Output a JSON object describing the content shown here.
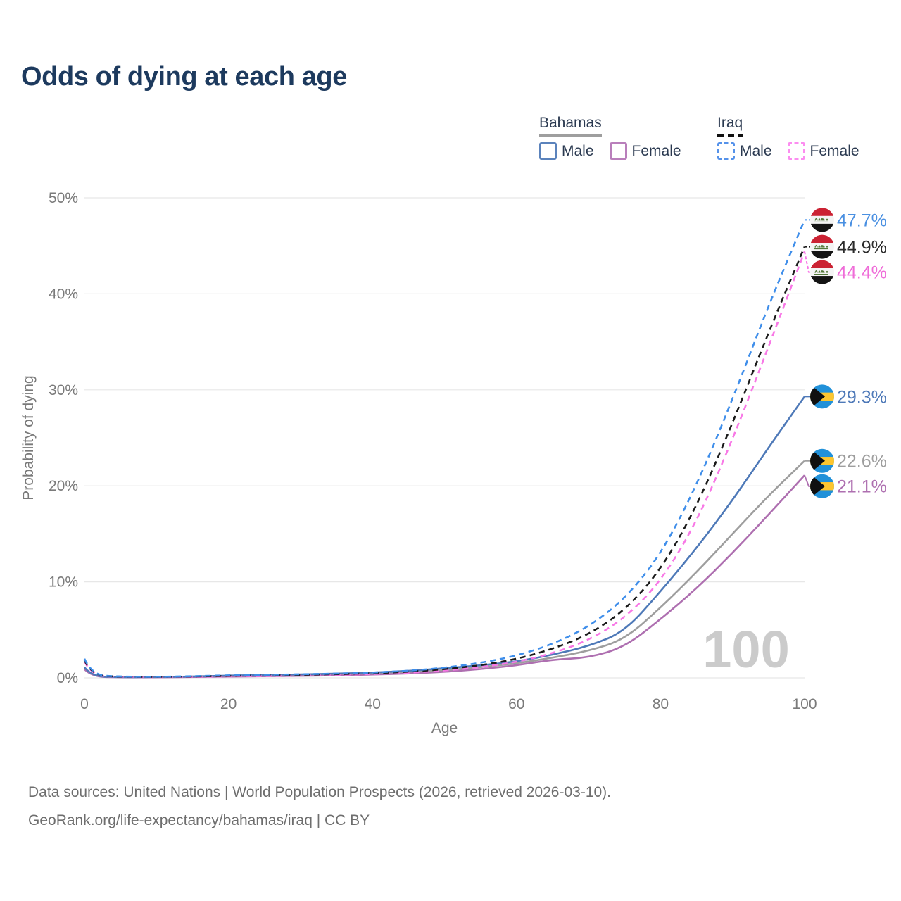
{
  "title": "Odds of dying at each age",
  "legend": {
    "groups": [
      {
        "label": "Bahamas",
        "style": "solid",
        "underline_color": "#9e9e9e",
        "items": [
          {
            "label": "Male",
            "color": "#5b83bc",
            "dash": "solid"
          },
          {
            "label": "Female",
            "color": "#b97fbb",
            "dash": "solid"
          }
        ]
      },
      {
        "label": "Iraq",
        "style": "dashed",
        "underline_color": "#111111",
        "items": [
          {
            "label": "Male",
            "color": "#5592ea",
            "dash": "dashed"
          },
          {
            "label": "Female",
            "color": "#fc8df0",
            "dash": "dashed"
          }
        ]
      }
    ]
  },
  "chart_data": {
    "type": "line",
    "title": "Odds of dying at each age",
    "xlabel": "Age",
    "ylabel": "Probability of dying",
    "xlim": [
      0,
      100
    ],
    "ylim": [
      0,
      50
    ],
    "grid": "horizontal",
    "legend_position": "top-right",
    "xticks": [
      0,
      20,
      40,
      60,
      80,
      100
    ],
    "ytick_values": [
      0,
      10,
      20,
      30,
      40,
      50
    ],
    "yticks": [
      "0%",
      "10%",
      "20%",
      "30%",
      "40%",
      "50%"
    ],
    "watermark": "100",
    "ages": [
      0,
      1,
      5,
      10,
      15,
      20,
      25,
      30,
      35,
      40,
      45,
      50,
      55,
      60,
      65,
      70,
      75,
      80,
      85,
      90,
      95,
      100
    ],
    "values_unit": "percent (approximate, read from chart)",
    "series": [
      {
        "id": "bahamas-male",
        "country": "Bahamas",
        "sex": "Male",
        "flag": "bahamas",
        "dash": "solid",
        "color": "#4e79b8",
        "label_color": "#4e79b8",
        "end_label": "29.3%",
        "z": 2,
        "values": [
          1.1,
          0.15,
          0.08,
          0.08,
          0.14,
          0.24,
          0.3,
          0.36,
          0.44,
          0.55,
          0.72,
          1.0,
          1.3,
          1.7,
          2.4,
          3.3,
          4.8,
          9.0,
          13.5,
          18.5,
          24.0,
          29.3
        ]
      },
      {
        "id": "bahamas-female",
        "country": "Bahamas",
        "sex": "Female",
        "flag": "bahamas",
        "dash": "solid",
        "color": "#ae6fb0",
        "label_color": "#ae6fb0",
        "end_label": "21.1%",
        "z": 1,
        "values": [
          0.9,
          0.12,
          0.06,
          0.06,
          0.09,
          0.13,
          0.17,
          0.21,
          0.26,
          0.34,
          0.45,
          0.62,
          0.9,
          1.3,
          1.9,
          2.1,
          3.2,
          6.1,
          9.3,
          13.0,
          17.0,
          21.1
        ]
      },
      {
        "id": "bahamas-both",
        "country": "Bahamas",
        "sex": "Both sexes",
        "flag": "bahamas",
        "dash": "solid",
        "color": "#9e9e9e",
        "label_color": "#9e9e9e",
        "end_label": "22.6%",
        "z": 0,
        "values": [
          1.0,
          0.13,
          0.07,
          0.07,
          0.11,
          0.18,
          0.23,
          0.28,
          0.35,
          0.44,
          0.57,
          0.8,
          1.1,
          1.5,
          2.1,
          2.8,
          4.0,
          7.3,
          11.0,
          15.0,
          19.0,
          22.6
        ]
      },
      {
        "id": "iraq-male",
        "country": "Iraq",
        "sex": "Male",
        "flag": "iraq",
        "dash": "dashed",
        "color": "#3f8eea",
        "label_color": "#4a90e2",
        "end_label": "47.7%",
        "z": 5,
        "values": [
          2.0,
          0.3,
          0.13,
          0.11,
          0.17,
          0.27,
          0.32,
          0.37,
          0.44,
          0.55,
          0.73,
          1.05,
          1.55,
          2.3,
          3.5,
          5.3,
          8.2,
          12.8,
          20.0,
          29.0,
          38.8,
          47.7
        ]
      },
      {
        "id": "iraq-female",
        "country": "Iraq",
        "sex": "Female",
        "flag": "iraq",
        "dash": "dashed",
        "color": "#f878e6",
        "label_color": "#ef6cd8",
        "end_label": "44.4%",
        "z": 3,
        "values": [
          1.7,
          0.24,
          0.1,
          0.08,
          0.11,
          0.15,
          0.19,
          0.24,
          0.31,
          0.4,
          0.53,
          0.76,
          1.1,
          1.65,
          2.55,
          3.9,
          6.2,
          10.0,
          16.2,
          24.8,
          34.5,
          44.4
        ]
      },
      {
        "id": "iraq-both",
        "country": "Iraq",
        "sex": "Both sexes",
        "flag": "iraq",
        "dash": "dashed",
        "color": "#1a1a1a",
        "label_color": "#2b2b2b",
        "end_label": "44.9%",
        "z": 4,
        "values": [
          1.85,
          0.27,
          0.11,
          0.1,
          0.14,
          0.21,
          0.26,
          0.31,
          0.38,
          0.48,
          0.63,
          0.9,
          1.3,
          1.95,
          3.0,
          4.5,
          7.0,
          11.2,
          17.8,
          26.5,
          36.0,
          44.9
        ]
      }
    ],
    "flag_colors": {
      "iraq": {
        "red": "#cb2233",
        "white": "#f4f4f4",
        "black": "#141414",
        "green": "#55793c"
      },
      "bahamas": {
        "aqua": "#2191d9",
        "gold": "#fdc62f",
        "black": "#101010"
      }
    }
  },
  "footer": {
    "line1": "Data sources: United Nations | World Population Prospects (2026, retrieved 2026-03-10).",
    "line2": "GeoRank.org/life-expectancy/bahamas/iraq | CC BY"
  }
}
